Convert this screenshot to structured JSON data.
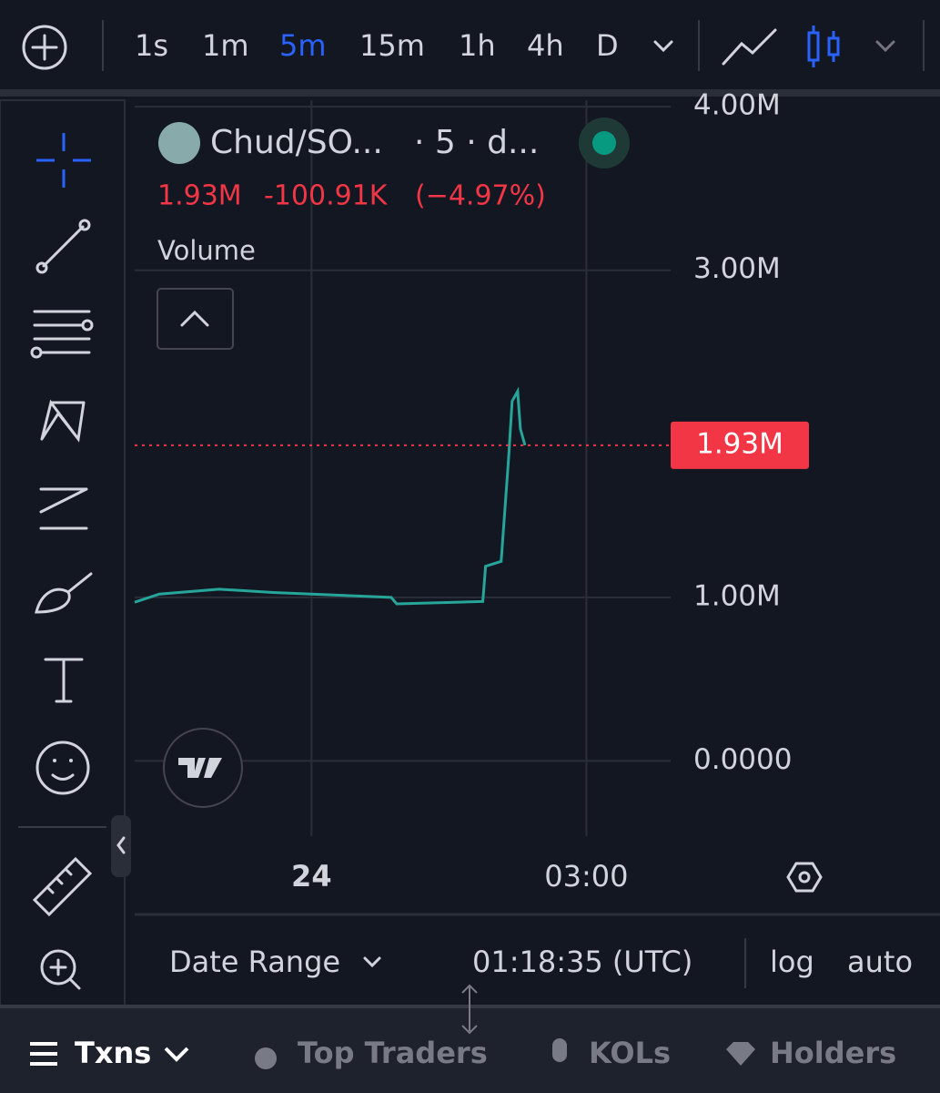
{
  "toolbar": {
    "intervals": [
      "1s",
      "1m",
      "5m",
      "15m",
      "1h",
      "4h",
      "D"
    ],
    "active_interval": "5m"
  },
  "legend": {
    "symbol": "Chud/SO...",
    "meta": "· 5 · d...",
    "price": "1.93M",
    "change": "-100.91K",
    "change_pct": "(−4.97%)",
    "study": "Volume"
  },
  "chart_data": {
    "type": "line",
    "color": "#26a69a",
    "grid": true,
    "x": [
      -1.93,
      -1.66,
      -1.01,
      -0.42,
      0.87,
      0.93,
      1.87,
      1.9,
      2.07,
      2.15,
      2.19,
      2.25,
      2.28,
      2.33
    ],
    "values": [
      970000,
      1020000,
      1050000,
      1030000,
      1000000,
      960000,
      975000,
      1190000,
      1220000,
      1840000,
      2200000,
      2260000,
      2030000,
      1930000
    ],
    "xlim": [
      -1.93,
      3.92
    ],
    "xticks": [
      {
        "value": 0,
        "label": "24"
      },
      {
        "value": 3,
        "label": "03:00"
      }
    ],
    "ylim": [
      -460000,
      4040000
    ],
    "yticks": [
      {
        "value": 0,
        "label": "0.0000"
      },
      {
        "value": 1000000,
        "label": "1.00M"
      },
      {
        "value": 3000000,
        "label": "3.00M"
      },
      {
        "value": 4000000,
        "label": "4.00M"
      }
    ],
    "last_price": {
      "value": 1930000,
      "label": "1.93M"
    }
  },
  "bottom": {
    "date_range": "Date Range",
    "time": "01:18:35 (UTC)",
    "log": "log",
    "auto": "auto"
  },
  "tabs": [
    "Txns",
    "Top Traders",
    "KOLs",
    "Holders"
  ]
}
